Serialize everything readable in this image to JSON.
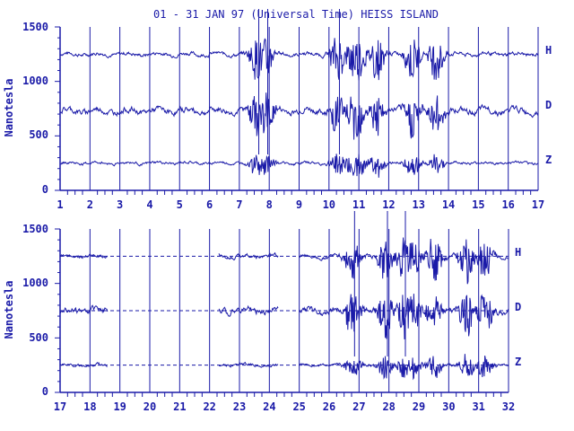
{
  "chart_data": {
    "type": "line",
    "title": "01 - 31 JAN 97 (Universal Time) HEISS ISLAND",
    "ylabel": "Nanotesla",
    "ylim": [
      0,
      1500
    ],
    "yticks": [
      "0",
      "500",
      "1000",
      "1500"
    ],
    "line_color": "#1a1aa8",
    "panels": [
      {
        "xticks": [
          "1",
          "2",
          "3",
          "4",
          "5",
          "6",
          "7",
          "8",
          "9",
          "10",
          "11",
          "12",
          "13",
          "14",
          "15",
          "16",
          "17"
        ],
        "xrange": [
          1,
          17
        ],
        "series": [
          {
            "name": "H",
            "baseline": 1250,
            "noise": 25
          },
          {
            "name": "D",
            "baseline": 730,
            "noise": 40
          },
          {
            "name": "Z",
            "baseline": 250,
            "noise": 18
          }
        ],
        "disturbed_days": [
          7.6,
          7.9,
          10.3,
          10.8,
          11.0,
          11.6,
          12.8,
          13.6
        ]
      },
      {
        "xticks": [
          "17",
          "18",
          "19",
          "20",
          "21",
          "22",
          "23",
          "24",
          "25",
          "26",
          "27",
          "28",
          "29",
          "30",
          "31",
          "32"
        ],
        "xrange": [
          17,
          32
        ],
        "series": [
          {
            "name": "H",
            "baseline": 1250,
            "noise": 25
          },
          {
            "name": "D",
            "baseline": 750,
            "noise": 40
          },
          {
            "name": "Z",
            "baseline": 250,
            "noise": 18
          }
        ],
        "gaps": [
          [
            18.6,
            22.3
          ],
          [
            24.3,
            25.0
          ]
        ],
        "dashed_baselines": [
          1250,
          750,
          250
        ],
        "disturbed_days": [
          26.8,
          27.9,
          28.5,
          28.8,
          29.5,
          30.6,
          31.2
        ]
      }
    ]
  }
}
